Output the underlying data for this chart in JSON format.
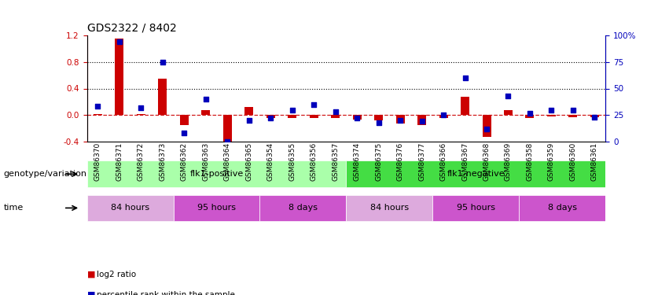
{
  "title": "GDS2322 / 8402",
  "samples": [
    "GSM86370",
    "GSM86371",
    "GSM86372",
    "GSM86373",
    "GSM86362",
    "GSM86363",
    "GSM86364",
    "GSM86365",
    "GSM86354",
    "GSM86355",
    "GSM86356",
    "GSM86357",
    "GSM86374",
    "GSM86375",
    "GSM86376",
    "GSM86377",
    "GSM86366",
    "GSM86367",
    "GSM86368",
    "GSM86369",
    "GSM86358",
    "GSM86359",
    "GSM86360",
    "GSM86361"
  ],
  "log2_ratio": [
    0.02,
    1.15,
    0.02,
    0.55,
    -0.15,
    0.07,
    -0.55,
    0.12,
    -0.05,
    -0.05,
    -0.05,
    -0.05,
    -0.07,
    -0.08,
    -0.13,
    -0.15,
    -0.05,
    0.28,
    -0.33,
    0.07,
    -0.05,
    -0.02,
    -0.03,
    -0.03
  ],
  "percentile": [
    33,
    94,
    32,
    75,
    8,
    40,
    0,
    20,
    22,
    30,
    35,
    28,
    22,
    18,
    20,
    19,
    25,
    60,
    12,
    43,
    27,
    30,
    30,
    23
  ],
  "bar_color": "#cc0000",
  "dot_color": "#0000bb",
  "ylim_left": [
    -0.4,
    1.2
  ],
  "ylim_right": [
    0,
    100
  ],
  "yticks_left": [
    -0.4,
    0.0,
    0.4,
    0.8,
    1.2
  ],
  "yticks_right": [
    0,
    25,
    50,
    75,
    100
  ],
  "hlines": [
    0.4,
    0.8
  ],
  "genotype_row": [
    {
      "label": "flk1-positive",
      "start": 0,
      "end": 12,
      "color": "#aaffaa"
    },
    {
      "label": "flk1-negative",
      "start": 12,
      "end": 24,
      "color": "#44dd44"
    }
  ],
  "time_row": [
    {
      "label": "84 hours",
      "start": 0,
      "end": 4,
      "color": "#ddaadd"
    },
    {
      "label": "95 hours",
      "start": 4,
      "end": 8,
      "color": "#cc55cc"
    },
    {
      "label": "8 days",
      "start": 8,
      "end": 12,
      "color": "#cc55cc"
    },
    {
      "label": "84 hours",
      "start": 12,
      "end": 16,
      "color": "#ddaadd"
    },
    {
      "label": "95 hours",
      "start": 16,
      "end": 20,
      "color": "#cc55cc"
    },
    {
      "label": "8 days",
      "start": 20,
      "end": 24,
      "color": "#cc55cc"
    }
  ],
  "genotype_label": "genotype/variation",
  "time_label": "time",
  "legend_items": [
    {
      "color": "#cc0000",
      "label": "log2 ratio"
    },
    {
      "color": "#0000bb",
      "label": "percentile rank within the sample"
    }
  ]
}
